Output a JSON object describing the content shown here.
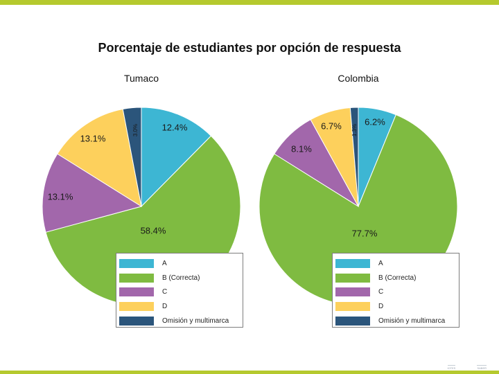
{
  "page": {
    "title": "Porcentaje de estudiantes por opción de respuesta",
    "accent_color": "#b5c92e"
  },
  "chart_data": [
    {
      "type": "pie",
      "title": "Tumaco",
      "categories": [
        "A",
        "B (Correcta)",
        "C",
        "D",
        "Omisión y multimarca"
      ],
      "values": [
        12.4,
        58.4,
        13.1,
        13.1,
        3.0
      ],
      "labels": [
        "12.4%",
        "58.4%",
        "13.1%",
        "13.1%",
        "3.0%"
      ],
      "colors": [
        "#3db6d3",
        "#7fbb41",
        "#a267ab",
        "#fdd05c",
        "#2b557b"
      ],
      "legend": "bottom-right"
    },
    {
      "type": "pie",
      "title": "Colombia",
      "categories": [
        "A",
        "B (Correcta)",
        "C",
        "D",
        "Omisión y multimarca"
      ],
      "values": [
        6.2,
        77.7,
        8.1,
        6.7,
        1.3
      ],
      "labels": [
        "6.2%",
        "77.7%",
        "8.1%",
        "6.7%",
        "1.3%"
      ],
      "colors": [
        "#3db6d3",
        "#7fbb41",
        "#a267ab",
        "#fdd05c",
        "#2b557b"
      ],
      "legend": "bottom-right"
    }
  ],
  "footer": {
    "marks": [
      "ICFES",
      "SABER"
    ]
  }
}
